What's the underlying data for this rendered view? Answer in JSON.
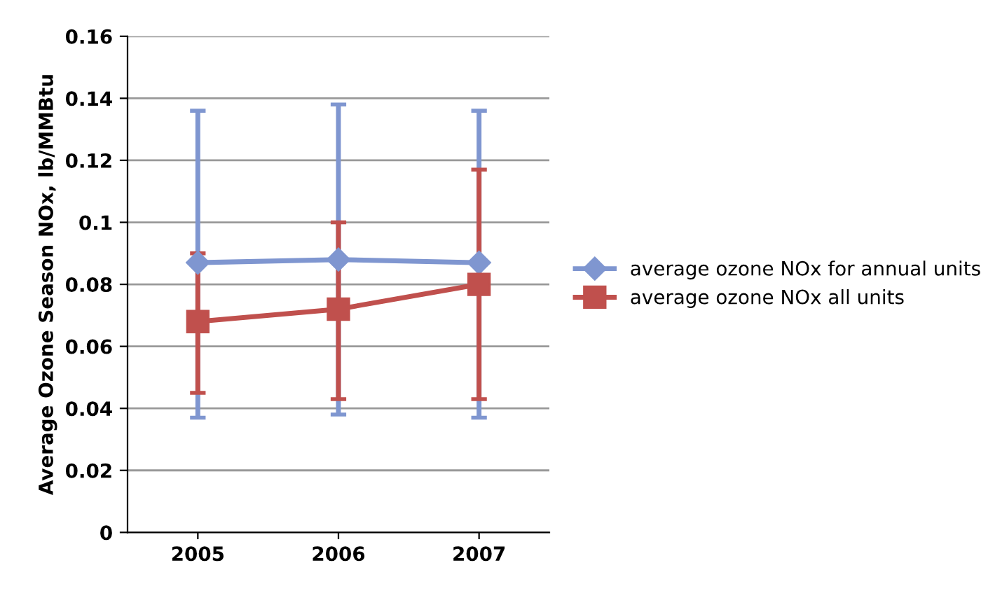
{
  "chart_data": {
    "type": "line",
    "ylabel": "Average Ozone Season NOx, lb/MMBtu",
    "categories": [
      "2005",
      "2006",
      "2007"
    ],
    "series": [
      {
        "name": "average ozone NOx for annual units",
        "color": "#7f96d0",
        "marker": "diamond",
        "values": [
          0.087,
          0.088,
          0.087
        ],
        "errors": [
          [
            0.037,
            0.136
          ],
          [
            0.038,
            0.138
          ],
          [
            0.037,
            0.136
          ]
        ]
      },
      {
        "name": "average ozone NOx all units",
        "color": "#c0504d",
        "marker": "square",
        "values": [
          0.068,
          0.072,
          0.08
        ],
        "errors": [
          [
            0.045,
            0.09
          ],
          [
            0.043,
            0.1
          ],
          [
            0.043,
            0.117
          ]
        ]
      }
    ],
    "ylim": [
      0,
      0.16
    ],
    "yticks": [
      0,
      0.02,
      0.04,
      0.06,
      0.08,
      0.1,
      0.12,
      0.14,
      0.16
    ],
    "grid": "y",
    "legend": "right"
  }
}
